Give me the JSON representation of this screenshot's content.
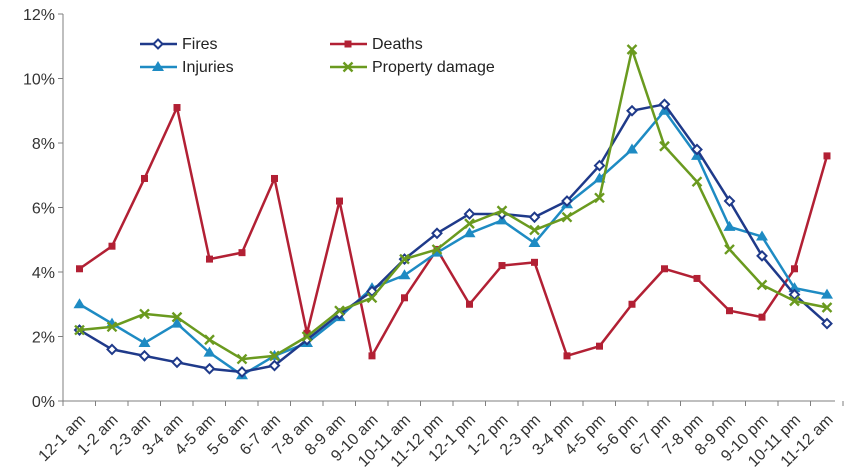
{
  "chart_data": {
    "type": "line",
    "title": "",
    "xlabel": "",
    "ylabel": "",
    "ylim": [
      0,
      12
    ],
    "yticks": [
      {
        "value": 0,
        "label": "0%"
      },
      {
        "value": 2,
        "label": "2%"
      },
      {
        "value": 4,
        "label": "4%"
      },
      {
        "value": 6,
        "label": "6%"
      },
      {
        "value": 8,
        "label": "8%"
      },
      {
        "value": 10,
        "label": "10%"
      },
      {
        "value": 12,
        "label": "12%"
      }
    ],
    "grid": false,
    "legend_position": "top",
    "categories": [
      "12-1 am",
      "1-2 am",
      "2-3 am",
      "3-4 am",
      "4-5 am",
      "5-6 am",
      "6-7 am",
      "7-8 am",
      "8-9 am",
      "9-10 am",
      "10-11 am",
      "11-12 pm",
      "12-1 pm",
      "1-2 pm",
      "2-3 pm",
      "3-4 pm",
      "4-5 pm",
      "5-6 pm",
      "6-7 pm",
      "7-8 pm",
      "8-9 pm",
      "9-10 pm",
      "10-11 pm",
      "11-12 am"
    ],
    "series": [
      {
        "name": "Fires",
        "color": "#1F3A8A",
        "marker": "diamond-open",
        "values": [
          2.2,
          1.6,
          1.4,
          1.2,
          1.0,
          0.9,
          1.1,
          1.9,
          2.7,
          3.4,
          4.4,
          5.2,
          5.8,
          5.8,
          5.7,
          6.2,
          7.3,
          9.0,
          9.2,
          7.8,
          6.2,
          4.5,
          3.3,
          2.4
        ]
      },
      {
        "name": "Deaths",
        "color": "#B22034",
        "marker": "square",
        "values": [
          4.1,
          4.8,
          6.9,
          9.1,
          4.4,
          4.6,
          6.9,
          2.1,
          6.2,
          1.4,
          3.2,
          4.7,
          3.0,
          4.2,
          4.3,
          1.4,
          1.7,
          3.0,
          4.1,
          3.8,
          2.8,
          2.6,
          4.1,
          7.6
        ]
      },
      {
        "name": "Injuries",
        "color": "#1E8BC3",
        "marker": "triangle",
        "values": [
          3.0,
          2.4,
          1.8,
          2.4,
          1.5,
          0.8,
          1.4,
          1.8,
          2.6,
          3.5,
          3.9,
          4.6,
          5.2,
          5.6,
          4.9,
          6.1,
          6.9,
          7.8,
          9.0,
          7.6,
          5.4,
          5.1,
          3.5,
          3.3
        ]
      },
      {
        "name": "Property damage",
        "color": "#6A9A1F",
        "marker": "x",
        "values": [
          2.2,
          2.3,
          2.7,
          2.6,
          1.9,
          1.3,
          1.4,
          2.0,
          2.8,
          3.2,
          4.4,
          4.7,
          5.5,
          5.9,
          5.3,
          5.7,
          6.3,
          10.9,
          7.9,
          6.8,
          4.7,
          3.6,
          3.1,
          2.9
        ]
      }
    ]
  }
}
